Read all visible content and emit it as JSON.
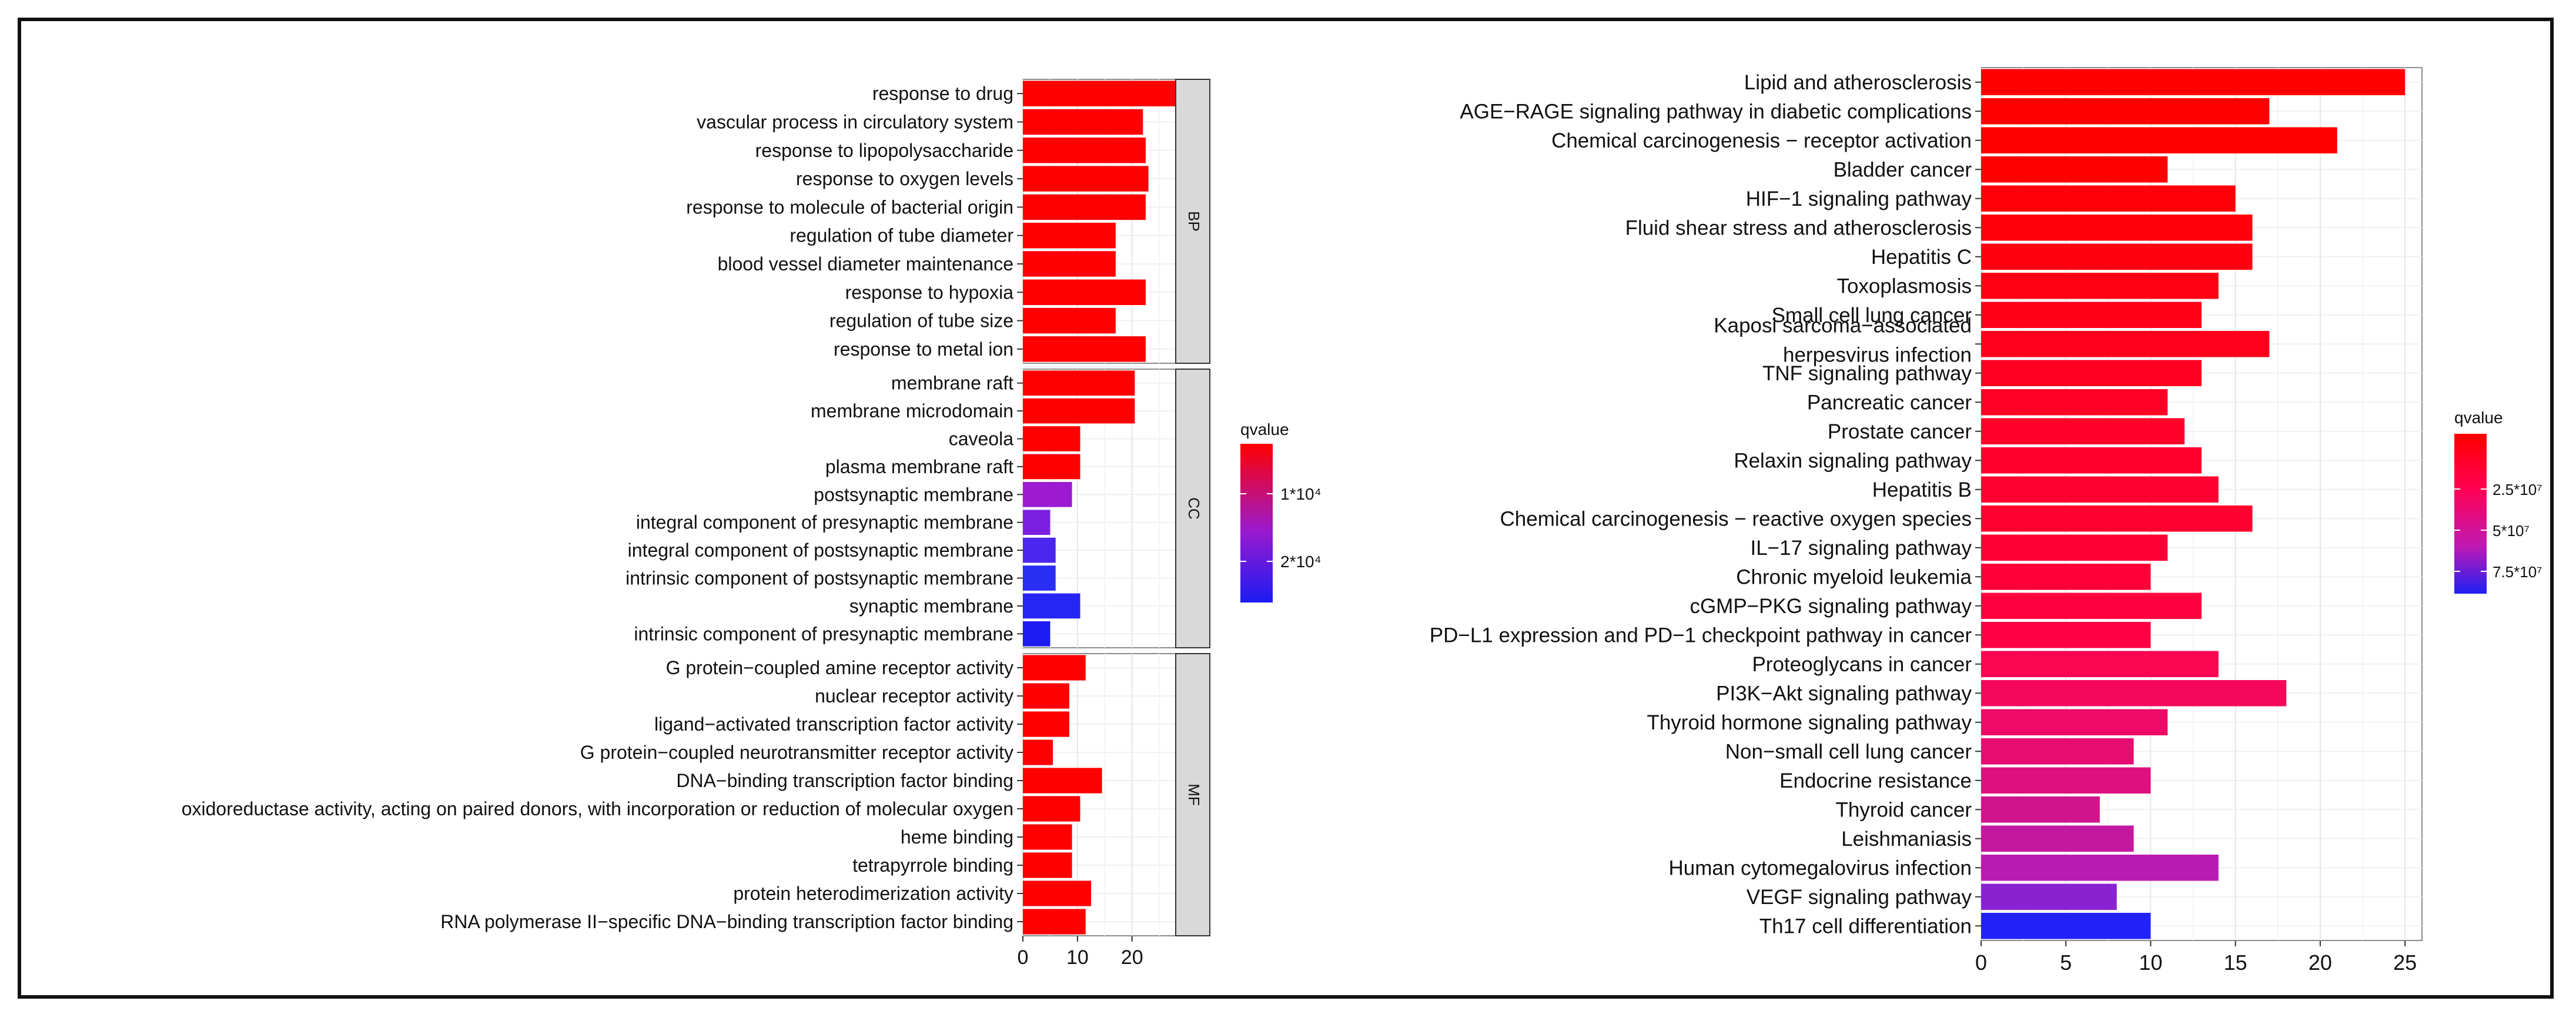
{
  "chart_data": [
    {
      "type": "bar",
      "orientation": "horizontal",
      "description": "GO enrichment",
      "xlim": [
        0,
        28
      ],
      "xticks": [
        0,
        10,
        20
      ],
      "legend": {
        "title": "qvalue",
        "labels": [
          "1*10⁴",
          "2*10⁴"
        ],
        "colors": [
          "#ff0000",
          "#9a1acf",
          "#1b1bf2"
        ]
      },
      "facets": [
        {
          "label": "BP",
          "categories": [
            "response to drug",
            "vascular process in circulatory system",
            "response to lipopolysaccharide",
            "response to oxygen levels",
            "response to molecule of bacterial origin",
            "regulation of tube diameter",
            "blood vessel diameter maintenance",
            "response to hypoxia",
            "regulation of tube size",
            "response to metal ion"
          ],
          "values": [
            28,
            22,
            22.5,
            23,
            22.5,
            17,
            17,
            22.5,
            17,
            22.5
          ],
          "colors": [
            "#ff0000",
            "#ff0000",
            "#ff0000",
            "#ff0000",
            "#ff0000",
            "#ff0000",
            "#ff0000",
            "#ff0000",
            "#ff0000",
            "#ff0000"
          ]
        },
        {
          "label": "CC",
          "categories": [
            "membrane raft",
            "membrane microdomain",
            "caveola",
            "plasma membrane raft",
            "postsynaptic membrane",
            "integral component of presynaptic membrane",
            "integral component of postsynaptic membrane",
            "intrinsic component of postsynaptic membrane",
            "synaptic membrane",
            "intrinsic component of presynaptic membrane"
          ],
          "values": [
            20.5,
            20.5,
            10.5,
            10.5,
            9,
            5,
            6,
            6,
            10.5,
            5
          ],
          "colors": [
            "#ff0000",
            "#ff0000",
            "#ff0000",
            "#ff0000",
            "#9b1ad2",
            "#7a1fe0",
            "#4a26ef",
            "#2a2df2",
            "#2525f4",
            "#1b1bf2"
          ]
        },
        {
          "label": "MF",
          "categories": [
            "G protein−coupled amine receptor activity",
            "nuclear receptor activity",
            "ligand−activated transcription factor activity",
            "G protein−coupled neurotransmitter receptor activity",
            "DNA−binding transcription factor binding",
            "oxidoreductase activity, acting on paired donors, with incorporation or reduction of molecular oxygen",
            "heme binding",
            "tetrapyrrole binding",
            "protein heterodimerization activity",
            "RNA polymerase II−specific DNA−binding transcription factor binding"
          ],
          "values": [
            11.5,
            8.5,
            8.5,
            5.5,
            14.5,
            10.5,
            9,
            9,
            12.5,
            11.5
          ],
          "colors": [
            "#ff0000",
            "#ff0000",
            "#ff0000",
            "#ff0000",
            "#ff0000",
            "#ff0000",
            "#ff0000",
            "#ff0000",
            "#ff0000",
            "#ff0000"
          ]
        }
      ]
    },
    {
      "type": "bar",
      "orientation": "horizontal",
      "description": "KEGG pathway enrichment",
      "xlim": [
        0,
        26
      ],
      "xticks": [
        0,
        5,
        10,
        15,
        20,
        25
      ],
      "legend": {
        "title": "qvalue",
        "labels": [
          "2.5*10⁷",
          "5*10⁷",
          "7.5*10⁷"
        ],
        "colors": [
          "#ff0000",
          "#ff0055",
          "#c019b2",
          "#1f1ff5"
        ]
      },
      "categories": [
        {
          "label": "Lipid and atherosclerosis"
        },
        {
          "label": "AGE−RAGE signaling pathway in diabetic complications"
        },
        {
          "label": "Chemical carcinogenesis − receptor activation"
        },
        {
          "label": "Bladder cancer"
        },
        {
          "label": "HIF−1 signaling pathway"
        },
        {
          "label": "Fluid shear stress and atherosclerosis"
        },
        {
          "label": "Hepatitis C"
        },
        {
          "label": "Toxoplasmosis"
        },
        {
          "label": "Small cell lung cancer"
        },
        {
          "label": "Kaposi sarcoma−associated",
          "label2": "herpesvirus infection"
        },
        {
          "label": "TNF signaling pathway"
        },
        {
          "label": "Pancreatic cancer"
        },
        {
          "label": "Prostate cancer"
        },
        {
          "label": "Relaxin signaling pathway"
        },
        {
          "label": "Hepatitis B"
        },
        {
          "label": "Chemical carcinogenesis − reactive oxygen species"
        },
        {
          "label": "IL−17 signaling pathway"
        },
        {
          "label": "Chronic myeloid leukemia"
        },
        {
          "label": "cGMP−PKG signaling pathway"
        },
        {
          "label": "PD−L1 expression and PD−1 checkpoint pathway in cancer"
        },
        {
          "label": "Proteoglycans in cancer"
        },
        {
          "label": "PI3K−Akt signaling pathway"
        },
        {
          "label": "Thyroid hormone signaling pathway"
        },
        {
          "label": "Non−small cell lung cancer"
        },
        {
          "label": "Endocrine resistance"
        },
        {
          "label": "Thyroid cancer"
        },
        {
          "label": "Leishmaniasis"
        },
        {
          "label": "Human cytomegalovirus infection"
        },
        {
          "label": "VEGF signaling pathway"
        },
        {
          "label": "Th17 cell differentiation"
        }
      ],
      "values": [
        25,
        17,
        21,
        11,
        15,
        16,
        16,
        14,
        13,
        17,
        13,
        11,
        12,
        13,
        14,
        16,
        11,
        10,
        13,
        10,
        14,
        18,
        11,
        9,
        10,
        7,
        9,
        14,
        8,
        10
      ],
      "colors": [
        "#ff0000",
        "#ff0000",
        "#ff0000",
        "#ff0000",
        "#ff0008",
        "#ff000c",
        "#ff0010",
        "#ff0014",
        "#ff0018",
        "#ff001c",
        "#ff0020",
        "#ff0024",
        "#ff0028",
        "#ff002c",
        "#ff0030",
        "#ff0030",
        "#ff0034",
        "#ff0038",
        "#ff003e",
        "#ff0045",
        "#fb0550",
        "#f4085a",
        "#ee0a66",
        "#e60c72",
        "#dd107e",
        "#d0148e",
        "#c4189f",
        "#b81cb0",
        "#8a22d2",
        "#2222f8"
      ]
    }
  ]
}
